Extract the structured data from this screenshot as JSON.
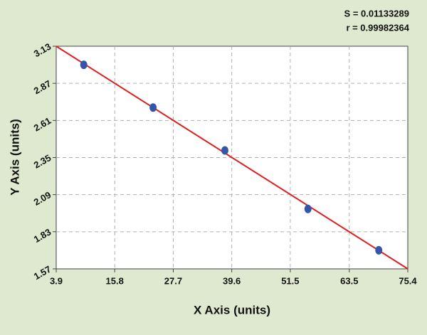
{
  "chart_data": {
    "type": "scatter",
    "x_label": "X Axis (units)",
    "y_label": "Y Axis (units)",
    "annotations": [
      "S = 0.01133289",
      "r = 0.99982364"
    ],
    "x": [
      9.5,
      23.6,
      38.2,
      55.1,
      69.5
    ],
    "values": [
      3.0,
      2.7,
      2.4,
      1.99,
      1.7
    ],
    "color": "#3355aa",
    "fit": {
      "x": [
        3.9,
        75.4
      ],
      "values": [
        3.13,
        1.57
      ],
      "color": "#e02020"
    },
    "xlim": [
      3.9,
      75.4
    ],
    "xticks": [
      3.9,
      15.8,
      27.7,
      39.6,
      51.5,
      63.5,
      75.4
    ],
    "ylim": [
      1.57,
      3.13
    ],
    "yticks": [
      1.57,
      1.83,
      2.09,
      2.35,
      2.61,
      2.87,
      3.13
    ],
    "grid": true
  }
}
